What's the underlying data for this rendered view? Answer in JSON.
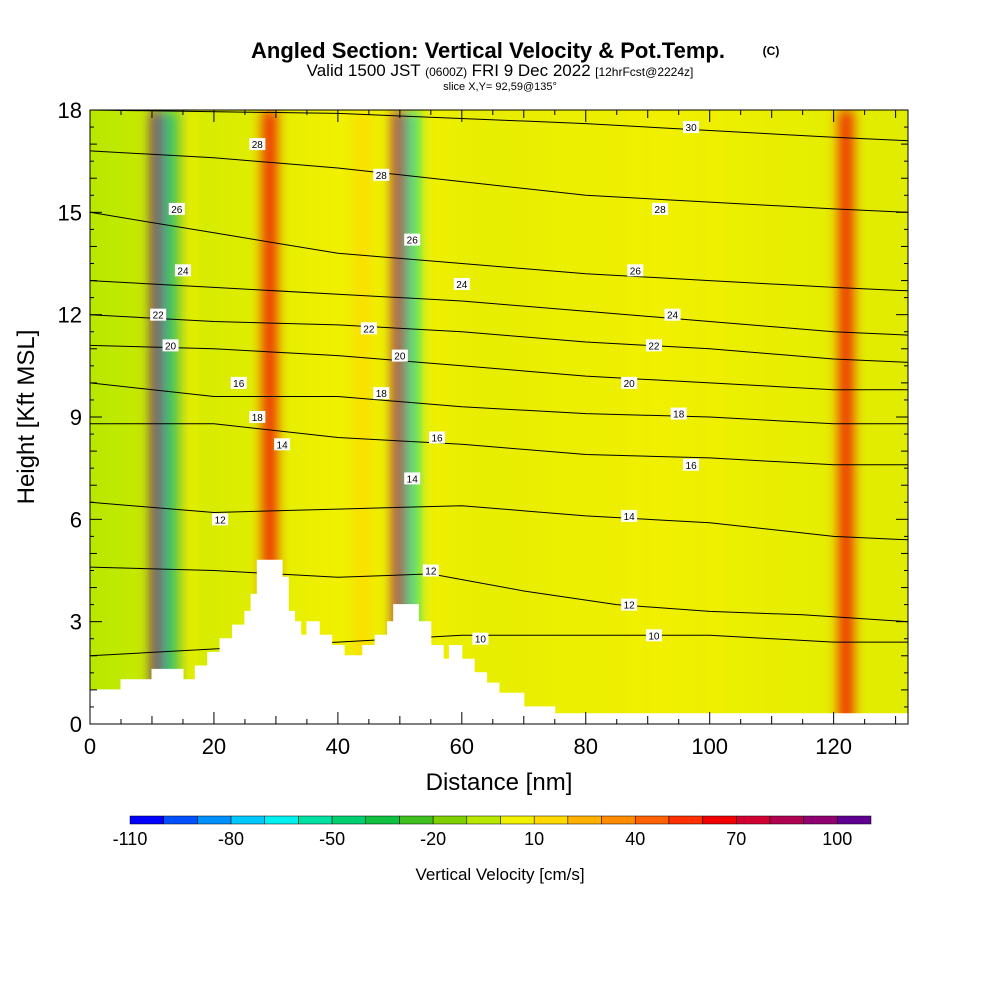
{
  "title": {
    "main": "Angled Section: Vertical Velocity & Pot.Temp.",
    "mark": "(C)",
    "valid_prefix": "Valid 1500 JST",
    "utc_time": "(0600Z)",
    "valid_date": "FRI 9 Dec 2022",
    "forecast": "[12hrFcst@2224z]",
    "slice": "slice X,Y= 92,59@135°"
  },
  "chart_data": {
    "type": "heatmap",
    "xlabel": "Distance [nm]",
    "ylabel": "Height [Kft MSL]",
    "xlim": [
      0,
      132
    ],
    "ylim": [
      0,
      18
    ],
    "x_ticks": [
      0,
      20,
      40,
      60,
      80,
      100,
      120
    ],
    "y_ticks": [
      0,
      3,
      6,
      9,
      12,
      15,
      18
    ],
    "colorbar": {
      "title": "Vertical Velocity [cm/s]",
      "labels": [
        "-110",
        "-80",
        "-50",
        "-20",
        "10",
        "40",
        "70",
        "100"
      ],
      "colors": [
        "#0000ff",
        "#0050ff",
        "#0090ff",
        "#00c8ff",
        "#00f0f0",
        "#00e0a0",
        "#00d070",
        "#10c040",
        "#40c020",
        "#80d000",
        "#b8e800",
        "#f0f000",
        "#ffd800",
        "#ffb000",
        "#ff8c00",
        "#ff6000",
        "#ff3000",
        "#f00000",
        "#d00030",
        "#b00050",
        "#900070",
        "#600090"
      ]
    },
    "velocity_columns": [
      {
        "x": 13,
        "value": -80
      },
      {
        "x": 14,
        "value": -50
      },
      {
        "x": 16,
        "value": -20
      },
      {
        "x": 29,
        "value": 40
      },
      {
        "x": 44,
        "value": -10
      },
      {
        "x": 52,
        "value": -80
      },
      {
        "x": 57,
        "value": -20
      },
      {
        "x": 88,
        "value": -20
      },
      {
        "x": 101,
        "value": -20
      },
      {
        "x": 11,
        "value": 100
      },
      {
        "x": 50,
        "value": 70
      },
      {
        "x": 122,
        "value": 40
      }
    ],
    "terrain": [
      [
        0,
        1.0
      ],
      [
        5,
        1.0
      ],
      [
        5,
        1.3
      ],
      [
        10,
        1.3
      ],
      [
        10,
        1.6
      ],
      [
        15,
        1.6
      ],
      [
        15,
        1.3
      ],
      [
        17,
        1.3
      ],
      [
        17,
        1.7
      ],
      [
        19,
        1.7
      ],
      [
        19,
        2.1
      ],
      [
        21,
        2.1
      ],
      [
        21,
        2.5
      ],
      [
        23,
        2.5
      ],
      [
        23,
        2.9
      ],
      [
        25,
        2.9
      ],
      [
        25,
        3.3
      ],
      [
        26,
        3.3
      ],
      [
        26,
        3.8
      ],
      [
        27,
        3.8
      ],
      [
        27,
        4.8
      ],
      [
        31,
        4.8
      ],
      [
        31,
        4.3
      ],
      [
        32,
        4.3
      ],
      [
        32,
        3.3
      ],
      [
        33,
        3.3
      ],
      [
        33,
        3.0
      ],
      [
        34,
        3.0
      ],
      [
        34,
        2.6
      ],
      [
        35,
        2.6
      ],
      [
        35,
        3.0
      ],
      [
        37,
        3.0
      ],
      [
        37,
        2.6
      ],
      [
        39,
        2.6
      ],
      [
        39,
        2.3
      ],
      [
        41,
        2.3
      ],
      [
        41,
        2.0
      ],
      [
        44,
        2.0
      ],
      [
        44,
        2.3
      ],
      [
        46,
        2.3
      ],
      [
        46,
        2.6
      ],
      [
        48,
        2.6
      ],
      [
        48,
        3.0
      ],
      [
        49,
        3.0
      ],
      [
        49,
        3.5
      ],
      [
        53,
        3.5
      ],
      [
        53,
        3.0
      ],
      [
        55,
        3.0
      ],
      [
        55,
        2.3
      ],
      [
        57,
        2.3
      ],
      [
        57,
        1.9
      ],
      [
        58,
        1.9
      ],
      [
        58,
        2.3
      ],
      [
        60,
        2.3
      ],
      [
        60,
        1.9
      ],
      [
        62,
        1.9
      ],
      [
        62,
        1.5
      ],
      [
        64,
        1.5
      ],
      [
        64,
        1.2
      ],
      [
        66,
        1.2
      ],
      [
        66,
        0.9
      ],
      [
        70,
        0.9
      ],
      [
        70,
        0.5
      ],
      [
        75,
        0.5
      ],
      [
        75,
        0.3
      ],
      [
        132,
        0.3
      ]
    ],
    "theta_contours": [
      {
        "level": 10,
        "x": [
          0,
          60,
          70,
          85,
          100,
          110,
          120,
          132
        ],
        "y": [
          2.0,
          2.6,
          2.6,
          2.6,
          2.6,
          2.5,
          2.4,
          2.4
        ]
      },
      {
        "level": 12,
        "x": [
          0,
          20,
          40,
          55,
          70,
          85,
          100,
          115,
          132
        ],
        "y": [
          4.6,
          4.5,
          4.3,
          4.4,
          3.9,
          3.5,
          3.3,
          3.2,
          3.0
        ]
      },
      {
        "level": 14,
        "x": [
          0,
          20,
          40,
          60,
          80,
          100,
          120,
          132
        ],
        "y": [
          6.5,
          6.2,
          6.3,
          6.4,
          6.1,
          5.9,
          5.5,
          5.4
        ]
      },
      {
        "level": 16,
        "x": [
          0,
          20,
          40,
          60,
          80,
          100,
          120,
          132
        ],
        "y": [
          8.8,
          8.8,
          8.4,
          8.2,
          7.9,
          7.8,
          7.6,
          7.6
        ]
      },
      {
        "level": 18,
        "x": [
          0,
          20,
          40,
          60,
          80,
          100,
          120,
          132
        ],
        "y": [
          10.0,
          9.6,
          9.6,
          9.3,
          9.1,
          9.0,
          8.8,
          8.8
        ]
      },
      {
        "level": 20,
        "x": [
          0,
          20,
          40,
          60,
          80,
          100,
          120,
          132
        ],
        "y": [
          11.1,
          11.0,
          10.8,
          10.5,
          10.2,
          10.0,
          9.8,
          9.8
        ]
      },
      {
        "level": 22,
        "x": [
          0,
          20,
          40,
          60,
          80,
          100,
          120,
          132
        ],
        "y": [
          12.0,
          11.8,
          11.7,
          11.5,
          11.2,
          11.0,
          10.7,
          10.6
        ]
      },
      {
        "level": 24,
        "x": [
          0,
          20,
          40,
          60,
          80,
          100,
          120,
          132
        ],
        "y": [
          13.0,
          12.8,
          12.6,
          12.4,
          12.1,
          11.8,
          11.5,
          11.4
        ]
      },
      {
        "level": 26,
        "x": [
          0,
          20,
          40,
          60,
          80,
          100,
          120,
          132
        ],
        "y": [
          15.0,
          14.4,
          13.8,
          13.5,
          13.2,
          13.0,
          12.8,
          12.7
        ]
      },
      {
        "level": 28,
        "x": [
          0,
          20,
          40,
          60,
          80,
          100,
          120,
          132
        ],
        "y": [
          16.8,
          16.6,
          16.3,
          15.9,
          15.5,
          15.3,
          15.1,
          15.0
        ]
      },
      {
        "level": 30,
        "x": [
          0,
          40,
          80,
          100,
          120,
          132
        ],
        "y": [
          18.0,
          17.9,
          17.6,
          17.4,
          17.2,
          17.1
        ]
      }
    ],
    "contour_labels": [
      {
        "text": "28",
        "x": 27,
        "y": 17.0
      },
      {
        "text": "28",
        "x": 47,
        "y": 16.1
      },
      {
        "text": "30",
        "x": 97,
        "y": 17.5
      },
      {
        "text": "26",
        "x": 14,
        "y": 15.1
      },
      {
        "text": "26",
        "x": 52,
        "y": 14.2
      },
      {
        "text": "28",
        "x": 92,
        "y": 15.1
      },
      {
        "text": "24",
        "x": 15,
        "y": 13.3
      },
      {
        "text": "26",
        "x": 88,
        "y": 13.3
      },
      {
        "text": "24",
        "x": 60,
        "y": 12.9
      },
      {
        "text": "22",
        "x": 11,
        "y": 12.0
      },
      {
        "text": "22",
        "x": 45,
        "y": 11.6
      },
      {
        "text": "24",
        "x": 94,
        "y": 12.0
      },
      {
        "text": "20",
        "x": 13,
        "y": 11.1
      },
      {
        "text": "20",
        "x": 50,
        "y": 10.8
      },
      {
        "text": "22",
        "x": 91,
        "y": 11.1
      },
      {
        "text": "16",
        "x": 24,
        "y": 10.0
      },
      {
        "text": "18",
        "x": 47,
        "y": 9.7
      },
      {
        "text": "20",
        "x": 87,
        "y": 10.0
      },
      {
        "text": "18",
        "x": 27,
        "y": 9.0
      },
      {
        "text": "18",
        "x": 95,
        "y": 9.1
      },
      {
        "text": "14",
        "x": 31,
        "y": 8.2
      },
      {
        "text": "16",
        "x": 56,
        "y": 8.4
      },
      {
        "text": "16",
        "x": 97,
        "y": 7.6
      },
      {
        "text": "14",
        "x": 52,
        "y": 7.2
      },
      {
        "text": "12",
        "x": 21,
        "y": 6.0
      },
      {
        "text": "14",
        "x": 87,
        "y": 6.1
      },
      {
        "text": "12",
        "x": 55,
        "y": 4.5
      },
      {
        "text": "12",
        "x": 87,
        "y": 3.5
      },
      {
        "text": "10",
        "x": 63,
        "y": 2.5
      },
      {
        "text": "10",
        "x": 91,
        "y": 2.6
      }
    ]
  }
}
